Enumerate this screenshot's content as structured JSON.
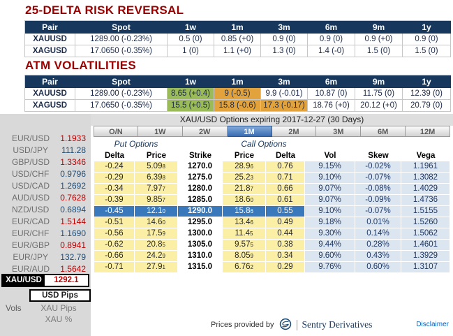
{
  "colors": {
    "heading": "#990000",
    "header_bg": "#17375D",
    "green": "#9BBB59",
    "orange": "#E3A33C",
    "yellow": "#FBEFA6",
    "lightblue": "#DCE6F1",
    "selected_blue": "#3A78BC",
    "down": "#C00000",
    "up": "#1F4E79",
    "link": "#0563C1"
  },
  "risk_reversal": {
    "title": "25-DELTA RISK REVERSAL",
    "columns": [
      "Pair",
      "Spot",
      "1w",
      "1m",
      "3m",
      "6m",
      "9m",
      "1y"
    ],
    "rows": [
      {
        "pair": "XAUUSD",
        "spot": "1289.00 (-0.23%)",
        "values": [
          "0.5 (0)",
          "0.85 (+0)",
          "0.9 (0)",
          "0.9 (0)",
          "0.9 (+0)",
          "0.9 (0)"
        ]
      },
      {
        "pair": "XAGUSD",
        "spot": "17.0650 (-0.35%)",
        "values": [
          "1 (0)",
          "1.1 (+0)",
          "1.3 (0)",
          "1.4 (-0)",
          "1.5 (0)",
          "1.5 (0)"
        ]
      }
    ]
  },
  "atm_vols": {
    "title": "ATM VOLATILITIES",
    "columns": [
      "Pair",
      "Spot",
      "1w",
      "1m",
      "3m",
      "6m",
      "9m",
      "1y"
    ],
    "rows": [
      {
        "pair": "XAUUSD",
        "spot": "1289.00 (-0.23%)",
        "values": [
          {
            "text": "8.65 (+0.4)",
            "bg": "green"
          },
          {
            "text": "9 (-0.5)",
            "bg": "orange"
          },
          {
            "text": "9.9 (-0.01)"
          },
          {
            "text": "10.87 (0)"
          },
          {
            "text": "11.75 (0)"
          },
          {
            "text": "12.39 (0)"
          }
        ]
      },
      {
        "pair": "XAGUSD",
        "spot": "17.0650 (-0.35%)",
        "values": [
          {
            "text": "15.5 (+0.5)",
            "bg": "green"
          },
          {
            "text": "15.8 (-0.6)",
            "bg": "orange"
          },
          {
            "text": "17.3 (-0.17)",
            "bg": "orange"
          },
          {
            "text": "18.76 (+0)"
          },
          {
            "text": "20.12 (+0)"
          },
          {
            "text": "20.79 (0)"
          }
        ]
      }
    ]
  },
  "sidebar": {
    "pairs": [
      {
        "label": "EUR/USD",
        "value": "1.1933",
        "dir": "down"
      },
      {
        "label": "USD/JPY",
        "value": "111.28",
        "dir": "up"
      },
      {
        "label": "GBP/USD",
        "value": "1.3346",
        "dir": "down"
      },
      {
        "label": "USD/CHF",
        "value": "0.9796",
        "dir": "up"
      },
      {
        "label": "USD/CAD",
        "value": "1.2692",
        "dir": "up"
      },
      {
        "label": "AUD/USD",
        "value": "0.7628",
        "dir": "down"
      },
      {
        "label": "NZD/USD",
        "value": "0.6894",
        "dir": "up"
      },
      {
        "label": "EUR/CAD",
        "value": "1.5144",
        "dir": "down"
      },
      {
        "label": "EUR/CHF",
        "value": "1.1690",
        "dir": "up"
      },
      {
        "label": "EUR/GBP",
        "value": "0.8941",
        "dir": "down"
      },
      {
        "label": "EUR/JPY",
        "value": "132.79",
        "dir": "up"
      },
      {
        "label": "EUR/AUD",
        "value": "1.5642",
        "dir": "down"
      }
    ],
    "selected_pair": {
      "label": "XAU/USD",
      "value": "1292.1"
    },
    "modes": {
      "caption": "Vols",
      "selected": "USD Pips",
      "others": [
        "XAU Pips",
        "XAU %"
      ]
    }
  },
  "options_panel": {
    "title": "XAU/USD Options expiring 2017-12-27 (30 Days)",
    "tabs": [
      "O/N",
      "1W",
      "2W",
      "1M",
      "2M",
      "3M",
      "6M",
      "12M"
    ],
    "selected_tab": "1M",
    "put_header": "Put Options",
    "call_header": "Call Options",
    "columns": [
      "Delta",
      "Price",
      "Strike",
      "Price",
      "Delta",
      "Vol",
      "Skew",
      "Vega"
    ],
    "selected_strike": "1290.0",
    "rows": [
      [
        "-0.24",
        "5.098",
        "1270.0",
        "28.96",
        "0.76",
        "9.15%",
        "-0.02%",
        "1.1961"
      ],
      [
        "-0.29",
        "6.398",
        "1275.0",
        "25.23",
        "0.71",
        "9.10%",
        "-0.07%",
        "1.3082"
      ],
      [
        "-0.34",
        "7.977",
        "1280.0",
        "21.87",
        "0.66",
        "9.07%",
        "-0.08%",
        "1.4029"
      ],
      [
        "-0.39",
        "9.857",
        "1285.0",
        "18.60",
        "0.61",
        "9.07%",
        "-0.09%",
        "1.4736"
      ],
      [
        "-0.45",
        "12.10",
        "1290.0",
        "15.86",
        "0.55",
        "9.10%",
        "-0.07%",
        "1.5155"
      ],
      [
        "-0.51",
        "14.60",
        "1295.0",
        "13.46",
        "0.49",
        "9.18%",
        "0.01%",
        "1.5260"
      ],
      [
        "-0.56",
        "17.59",
        "1300.0",
        "11.45",
        "0.44",
        "9.30%",
        "0.14%",
        "1.5062"
      ],
      [
        "-0.62",
        "20.85",
        "1305.0",
        "9.575",
        "0.38",
        "9.44%",
        "0.28%",
        "1.4601"
      ],
      [
        "-0.66",
        "24.29",
        "1310.0",
        "8.059",
        "0.34",
        "9.60%",
        "0.43%",
        "1.3929"
      ],
      [
        "-0.71",
        "27.91",
        "1315.0",
        "6.762",
        "0.29",
        "9.76%",
        "0.60%",
        "1.3107"
      ]
    ],
    "footer": {
      "provided_by": "Prices provided by",
      "brand": "Sentry Derivatives",
      "disclaimer": "Disclaimer"
    }
  }
}
